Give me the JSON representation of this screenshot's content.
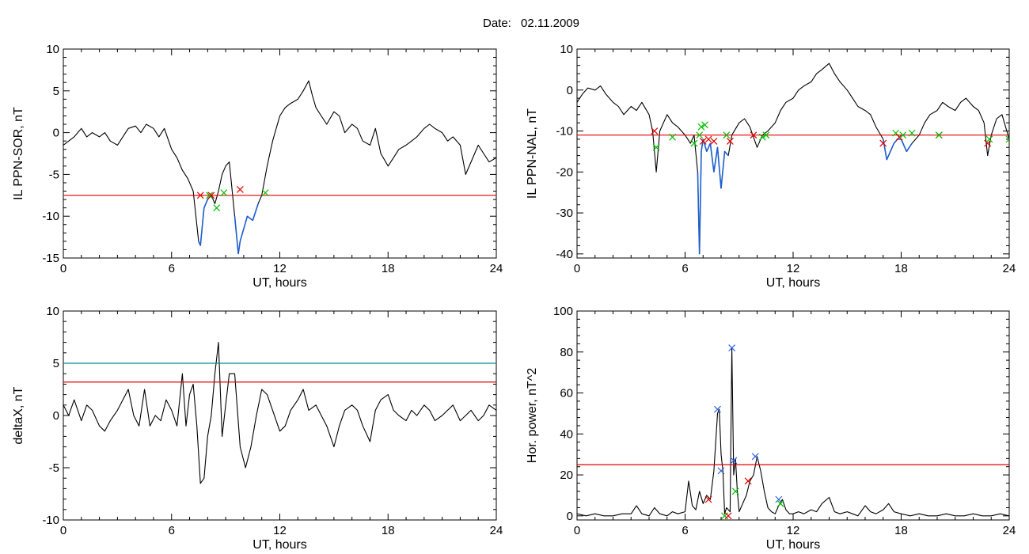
{
  "header": {
    "date_label": "Date:",
    "date_value": "02.11.2009"
  },
  "chart_data": [
    {
      "id": "ppn-sor",
      "type": "line",
      "xlabel": "UT, hours",
      "ylabel": "IL PPN-SOR, nT",
      "xlim": [
        0,
        24
      ],
      "ylim": [
        -15,
        10
      ],
      "xticks": [
        0,
        6,
        12,
        18,
        24
      ],
      "yticks": [
        -15,
        -10,
        -5,
        0,
        5,
        10
      ],
      "threshold_lines": [
        {
          "y": -7.5,
          "color": "#e00000"
        }
      ],
      "highlight_color": "#1e5fd0",
      "highlight_threshold": -7.5,
      "series": [
        {
          "color": "#000000",
          "x": [
            0,
            0.3,
            0.6,
            1.0,
            1.3,
            1.6,
            2.0,
            2.3,
            2.6,
            3.0,
            3.3,
            3.6,
            4.0,
            4.3,
            4.6,
            5.0,
            5.3,
            5.6,
            6.0,
            6.3,
            6.6,
            6.9,
            7.2,
            7.5,
            7.6,
            7.8,
            8.0,
            8.2,
            8.4,
            8.6,
            8.8,
            9.0,
            9.2,
            9.5,
            9.7,
            9.8,
            10.0,
            10.2,
            10.5,
            10.8,
            11.0,
            11.3,
            11.6,
            12.0,
            12.3,
            12.6,
            13.0,
            13.3,
            13.6,
            13.8,
            14.0,
            14.3,
            14.6,
            15.0,
            15.3,
            15.6,
            16.0,
            16.3,
            16.6,
            17.0,
            17.3,
            17.6,
            18.0,
            18.3,
            18.6,
            19.0,
            19.3,
            19.6,
            20.0,
            20.3,
            20.6,
            21.0,
            21.3,
            21.6,
            22.0,
            22.3,
            22.6,
            23.0,
            23.3,
            23.6,
            24.0
          ],
          "y": [
            -1.5,
            -1.0,
            -0.5,
            0.5,
            -0.5,
            0.0,
            -0.5,
            0.0,
            -1.0,
            -1.5,
            -0.5,
            0.5,
            0.8,
            0.0,
            1.0,
            0.5,
            -0.5,
            0.5,
            -2.0,
            -3.0,
            -4.5,
            -5.5,
            -7.0,
            -13.0,
            -13.5,
            -9.0,
            -8.0,
            -7.5,
            -8.5,
            -7.0,
            -5.0,
            -4.0,
            -3.5,
            -10.0,
            -14.5,
            -13.0,
            -11.5,
            -10.0,
            -10.5,
            -8.5,
            -7.5,
            -4.0,
            -1.0,
            2.0,
            3.0,
            3.5,
            4.0,
            5.0,
            6.2,
            4.5,
            3.0,
            2.0,
            1.0,
            2.5,
            2.0,
            0.0,
            1.0,
            0.5,
            -1.0,
            -1.5,
            0.5,
            -2.5,
            -4.0,
            -3.0,
            -2.0,
            -1.5,
            -1.0,
            -0.5,
            0.5,
            1.0,
            0.5,
            0.0,
            -1.0,
            -0.5,
            -1.5,
            -5.0,
            -3.5,
            -1.5,
            -2.5,
            -3.5,
            -3.0
          ]
        }
      ],
      "markers": [
        {
          "x": 7.6,
          "y": -7.5,
          "color": "#e00000"
        },
        {
          "x": 8.1,
          "y": -7.5,
          "color": "#00c000"
        },
        {
          "x": 8.2,
          "y": -7.5,
          "color": "#e00000"
        },
        {
          "x": 8.5,
          "y": -9.0,
          "color": "#00c000"
        },
        {
          "x": 8.9,
          "y": -7.2,
          "color": "#00c000"
        },
        {
          "x": 9.8,
          "y": -6.8,
          "color": "#e00000"
        },
        {
          "x": 11.2,
          "y": -7.2,
          "color": "#00c000"
        }
      ]
    },
    {
      "id": "ppn-nal",
      "type": "line",
      "xlabel": "UT, hours",
      "ylabel": "IL PPN-NAL, nT",
      "xlim": [
        0,
        24
      ],
      "ylim": [
        -41,
        10
      ],
      "xticks": [
        0,
        6,
        12,
        18,
        24
      ],
      "yticks": [
        -40,
        -30,
        -20,
        -10,
        0,
        10
      ],
      "threshold_lines": [
        {
          "y": -11,
          "color": "#e00000"
        }
      ],
      "highlight_color": "#1e5fd0",
      "highlight_threshold": -11,
      "series": [
        {
          "color": "#000000",
          "x": [
            0,
            0.3,
            0.6,
            1.0,
            1.3,
            1.6,
            2.0,
            2.3,
            2.6,
            3.0,
            3.3,
            3.6,
            4.0,
            4.2,
            4.4,
            4.6,
            5.0,
            5.3,
            5.6,
            6.0,
            6.3,
            6.5,
            6.7,
            6.8,
            6.9,
            7.0,
            7.2,
            7.4,
            7.6,
            7.8,
            8.0,
            8.2,
            8.4,
            8.6,
            9.0,
            9.3,
            9.6,
            10.0,
            10.3,
            10.6,
            11.0,
            11.3,
            11.6,
            12.0,
            12.3,
            12.6,
            13.0,
            13.3,
            13.6,
            14.0,
            14.3,
            14.6,
            15.0,
            15.3,
            15.6,
            16.0,
            16.3,
            16.6,
            17.0,
            17.2,
            17.4,
            17.6,
            17.8,
            18.0,
            18.3,
            18.6,
            19.0,
            19.3,
            19.6,
            20.0,
            20.3,
            20.6,
            21.0,
            21.3,
            21.6,
            22.0,
            22.3,
            22.6,
            22.8,
            23.0,
            23.3,
            23.6,
            24.0
          ],
          "y": [
            -3.0,
            -1.0,
            0.5,
            0.0,
            1.0,
            -1.0,
            -3.0,
            -4.0,
            -6.0,
            -4.0,
            -5.0,
            -3.0,
            -6.0,
            -10.0,
            -20.0,
            -10.0,
            -6.0,
            -8.0,
            -9.0,
            -11.0,
            -13.0,
            -11.0,
            -20.0,
            -40.0,
            -15.0,
            -12.0,
            -15.0,
            -13.0,
            -20.0,
            -14.0,
            -24.0,
            -15.0,
            -16.0,
            -11.0,
            -8.0,
            -7.0,
            -9.0,
            -14.0,
            -11.0,
            -10.0,
            -8.0,
            -5.0,
            -3.0,
            -2.0,
            0.0,
            1.0,
            2.0,
            4.0,
            5.0,
            6.5,
            4.0,
            2.0,
            0.0,
            -2.0,
            -4.0,
            -5.0,
            -6.0,
            -9.0,
            -12.0,
            -17.0,
            -15.0,
            -13.0,
            -12.0,
            -12.0,
            -15.0,
            -13.0,
            -11.0,
            -8.0,
            -6.0,
            -5.0,
            -3.0,
            -4.0,
            -5.0,
            -3.0,
            -2.0,
            -4.0,
            -5.0,
            -8.0,
            -16.0,
            -11.0,
            -7.0,
            -6.0,
            -12.0
          ]
        }
      ],
      "markers": [
        {
          "x": 4.3,
          "y": -10.0,
          "color": "#e00000"
        },
        {
          "x": 4.4,
          "y": -14.0,
          "color": "#00c000"
        },
        {
          "x": 5.3,
          "y": -11.5,
          "color": "#00c000"
        },
        {
          "x": 6.5,
          "y": -13.0,
          "color": "#00c000"
        },
        {
          "x": 6.8,
          "y": -11.0,
          "color": "#00c000"
        },
        {
          "x": 6.9,
          "y": -9.0,
          "color": "#00c000"
        },
        {
          "x": 7.0,
          "y": -12.5,
          "color": "#e00000"
        },
        {
          "x": 7.1,
          "y": -8.5,
          "color": "#00c000"
        },
        {
          "x": 7.3,
          "y": -12.0,
          "color": "#e00000"
        },
        {
          "x": 7.6,
          "y": -12.5,
          "color": "#e00000"
        },
        {
          "x": 8.3,
          "y": -11.0,
          "color": "#00c000"
        },
        {
          "x": 8.5,
          "y": -12.5,
          "color": "#e00000"
        },
        {
          "x": 9.8,
          "y": -11.0,
          "color": "#e00000"
        },
        {
          "x": 10.3,
          "y": -11.5,
          "color": "#00c000"
        },
        {
          "x": 10.5,
          "y": -11.0,
          "color": "#00c000"
        },
        {
          "x": 17.0,
          "y": -13.0,
          "color": "#e00000"
        },
        {
          "x": 17.7,
          "y": -10.5,
          "color": "#00c000"
        },
        {
          "x": 17.9,
          "y": -11.5,
          "color": "#e00000"
        },
        {
          "x": 18.1,
          "y": -11.0,
          "color": "#00c000"
        },
        {
          "x": 18.6,
          "y": -10.5,
          "color": "#00c000"
        },
        {
          "x": 20.1,
          "y": -11.0,
          "color": "#e00000"
        },
        {
          "x": 20.1,
          "y": -11.0,
          "color": "#00c000"
        },
        {
          "x": 22.8,
          "y": -13.0,
          "color": "#e00000"
        },
        {
          "x": 22.9,
          "y": -12.0,
          "color": "#00c000"
        },
        {
          "x": 24.0,
          "y": -12.0,
          "color": "#00c000"
        }
      ]
    },
    {
      "id": "deltax",
      "type": "line",
      "xlabel": "UT, hours",
      "ylabel": "deltaX, nT",
      "xlim": [
        0,
        24
      ],
      "ylim": [
        -10,
        10
      ],
      "xticks": [
        0,
        6,
        12,
        18,
        24
      ],
      "yticks": [
        -10,
        -5,
        0,
        5,
        10
      ],
      "threshold_lines": [
        {
          "y": 5.0,
          "color": "#008c8c"
        },
        {
          "y": 3.2,
          "color": "#e00000"
        }
      ],
      "series": [
        {
          "color": "#000000",
          "x": [
            0,
            0.3,
            0.6,
            1.0,
            1.3,
            1.6,
            2.0,
            2.3,
            2.6,
            3.0,
            3.3,
            3.6,
            3.9,
            4.2,
            4.5,
            4.8,
            5.1,
            5.4,
            5.7,
            6.0,
            6.3,
            6.6,
            6.8,
            7.0,
            7.2,
            7.4,
            7.6,
            7.8,
            8.0,
            8.2,
            8.4,
            8.6,
            8.8,
            9.0,
            9.2,
            9.5,
            9.8,
            10.1,
            10.4,
            10.7,
            11.0,
            11.3,
            11.6,
            12.0,
            12.3,
            12.6,
            13.0,
            13.3,
            13.6,
            14.0,
            14.3,
            14.6,
            15.0,
            15.3,
            15.6,
            16.0,
            16.3,
            16.6,
            17.0,
            17.3,
            17.6,
            18.0,
            18.3,
            18.6,
            19.0,
            19.3,
            19.6,
            20.0,
            20.3,
            20.6,
            21.0,
            21.3,
            21.6,
            22.0,
            22.3,
            22.6,
            23.0,
            23.3,
            23.6,
            24.0
          ],
          "y": [
            1.0,
            0.0,
            1.5,
            -0.5,
            1.0,
            0.5,
            -1.0,
            -1.5,
            -0.5,
            0.5,
            1.5,
            2.5,
            0.0,
            -1.0,
            2.5,
            -1.0,
            0.0,
            -0.5,
            1.5,
            0.5,
            -1.0,
            4.0,
            -1.0,
            2.0,
            3.0,
            -1.0,
            -6.5,
            -6.0,
            -2.0,
            0.0,
            4.0,
            7.0,
            -2.0,
            1.0,
            4.0,
            4.0,
            -3.0,
            -5.0,
            -3.0,
            0.0,
            2.5,
            2.0,
            0.5,
            -1.5,
            -1.0,
            0.5,
            1.5,
            2.5,
            0.5,
            1.0,
            0.0,
            -1.0,
            -3.0,
            -1.0,
            0.5,
            1.0,
            0.5,
            -1.0,
            -2.5,
            0.5,
            1.5,
            2.0,
            0.5,
            0.0,
            -0.5,
            0.5,
            0.0,
            1.0,
            0.5,
            -0.5,
            0.0,
            0.5,
            1.0,
            -0.5,
            0.0,
            0.5,
            -0.5,
            0.0,
            1.0,
            0.5
          ]
        }
      ],
      "markers": []
    },
    {
      "id": "hor-power",
      "type": "line",
      "xlabel": "UT, hours",
      "ylabel": "Hor. power, nT^2",
      "xlim": [
        0,
        24
      ],
      "ylim": [
        -2,
        100
      ],
      "xticks": [
        0,
        6,
        12,
        18,
        24
      ],
      "yticks": [
        0,
        20,
        40,
        60,
        80,
        100
      ],
      "threshold_lines": [
        {
          "y": 25,
          "color": "#e00000"
        }
      ],
      "series": [
        {
          "color": "#000000",
          "x": [
            0,
            0.5,
            1.0,
            1.5,
            2.0,
            2.5,
            3.0,
            3.3,
            3.6,
            4.0,
            4.3,
            4.6,
            5.0,
            5.3,
            5.6,
            6.0,
            6.2,
            6.4,
            6.6,
            6.8,
            7.0,
            7.2,
            7.4,
            7.6,
            7.8,
            7.9,
            8.0,
            8.1,
            8.2,
            8.3,
            8.5,
            8.6,
            8.7,
            8.8,
            8.9,
            9.0,
            9.2,
            9.4,
            9.6,
            9.8,
            10.0,
            10.2,
            10.4,
            10.6,
            10.8,
            11.0,
            11.2,
            11.4,
            11.6,
            11.8,
            12.0,
            12.3,
            12.6,
            13.0,
            13.3,
            13.6,
            14.0,
            14.3,
            14.6,
            15.0,
            15.3,
            15.6,
            16.0,
            16.3,
            16.6,
            17.0,
            17.3,
            17.6,
            18.0,
            18.5,
            19.0,
            19.5,
            20.0,
            20.5,
            21.0,
            21.5,
            22.0,
            22.5,
            23.0,
            23.5,
            24.0
          ],
          "y": [
            1,
            0,
            1,
            0,
            0,
            1,
            1,
            5,
            1,
            0,
            4,
            1,
            0,
            2,
            1,
            2,
            17,
            5,
            3,
            12,
            6,
            10,
            8,
            22,
            50,
            52,
            30,
            22,
            1,
            4,
            2,
            82,
            20,
            28,
            12,
            2,
            6,
            10,
            17,
            20,
            29,
            22,
            12,
            4,
            2,
            1,
            5,
            8,
            3,
            1,
            1,
            2,
            1,
            3,
            2,
            6,
            9,
            2,
            1,
            2,
            1,
            0,
            5,
            2,
            1,
            3,
            6,
            2,
            1,
            0,
            1,
            0,
            0,
            1,
            0,
            0,
            1,
            0,
            0,
            1,
            0
          ]
        }
      ],
      "markers": [
        {
          "x": 7.3,
          "y": 8,
          "color": "#e00000"
        },
        {
          "x": 7.8,
          "y": 52,
          "color": "#3060e0"
        },
        {
          "x": 8.0,
          "y": 22,
          "color": "#3060e0"
        },
        {
          "x": 8.2,
          "y": 0,
          "color": "#00c000"
        },
        {
          "x": 8.4,
          "y": 0,
          "color": "#e00000"
        },
        {
          "x": 8.6,
          "y": 82,
          "color": "#3060e0"
        },
        {
          "x": 8.7,
          "y": 27,
          "color": "#3060e0"
        },
        {
          "x": 8.8,
          "y": 12,
          "color": "#00c000"
        },
        {
          "x": 9.5,
          "y": 17,
          "color": "#e00000"
        },
        {
          "x": 9.9,
          "y": 29,
          "color": "#3060e0"
        },
        {
          "x": 11.2,
          "y": 8,
          "color": "#3060e0"
        },
        {
          "x": 11.3,
          "y": 6,
          "color": "#00c000"
        }
      ]
    }
  ]
}
